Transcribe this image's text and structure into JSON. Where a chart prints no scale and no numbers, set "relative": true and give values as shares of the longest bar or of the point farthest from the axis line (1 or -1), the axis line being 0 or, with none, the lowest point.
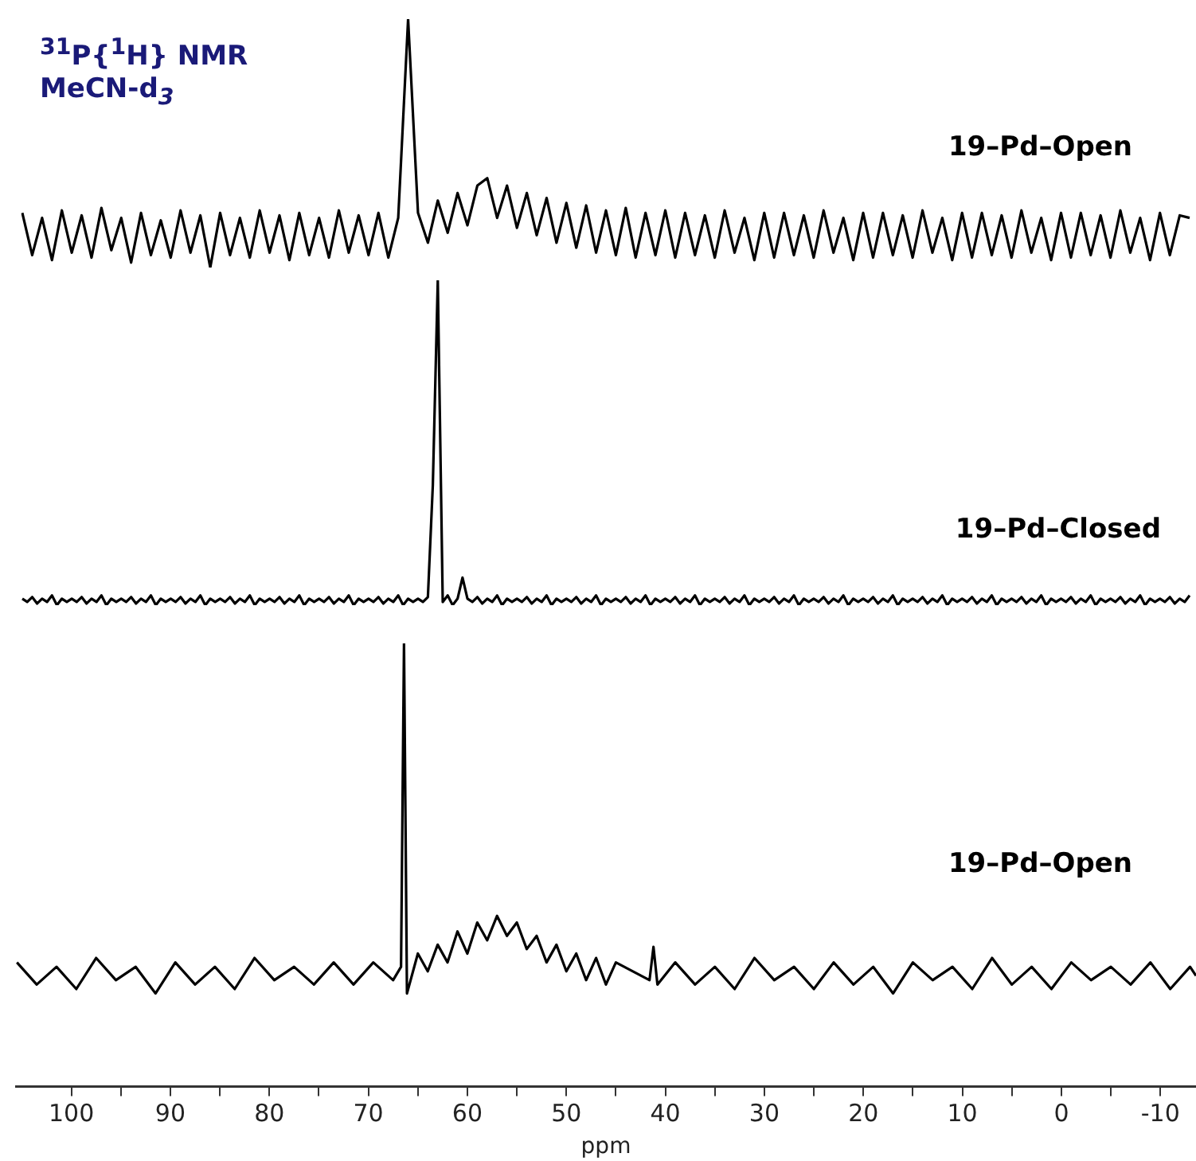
{
  "chart_data": [
    {
      "type": "line",
      "relative": true,
      "tick_labels": false,
      "marker": "none",
      "annotations": [
        "$^{31}$P{$^{1}$H} NMR",
        "MeCN-d$_{3}$"
      ],
      "categories": [
        null,
        null,
        null,
        null,
        null,
        null,
        null,
        null,
        null,
        null,
        null,
        null,
        null,
        null,
        null,
        null,
        null,
        null,
        null,
        null,
        null,
        null,
        null,
        null,
        null,
        null,
        null,
        null,
        null,
        null,
        null,
        null,
        null,
        null,
        null,
        null,
        null,
        null,
        null,
        null,
        null,
        null,
        null,
        null,
        null,
        null,
        null,
        null,
        null,
        null,
        null,
        null,
        null,
        null,
        null,
        null,
        null,
        null,
        null,
        null,
        null,
        null,
        null,
        null,
        null,
        null,
        null,
        null,
        null,
        null,
        null,
        null,
        null,
        null,
        null,
        null,
        null,
        null,
        null,
        null,
        null,
        null,
        null,
        null,
        null,
        null,
        null,
        null,
        null,
        null,
        null,
        null,
        null,
        null,
        null,
        null,
        null,
        null,
        null,
        null,
        null,
        null,
        null,
        null,
        null,
        null,
        null,
        null,
        null,
        null,
        null,
        null,
        null,
        null,
        null,
        null,
        null,
        null,
        null
      ],
      "series": [
        {
          "name": "19–Pd–Open",
          "color": "#000000",
          "values": [
            0.22,
            0.05,
            0.2,
            0.03,
            0.23,
            0.06,
            0.21,
            0.04,
            0.24,
            0.07,
            0.2,
            0.02,
            0.22,
            0.05,
            0.19,
            0.04,
            0.23,
            0.06,
            0.21,
            0,
            0.22,
            0.05,
            0.2,
            0.04,
            0.23,
            0.06,
            0.21,
            0.03,
            0.22,
            0.05,
            0.2,
            0.04,
            0.23,
            0.06,
            0.21,
            0.05,
            0.22,
            0.04,
            0.2,
            1,
            0.22,
            0.1,
            0.27,
            0.14,
            0.3,
            0.17,
            0.33,
            0.36,
            0.2,
            0.33,
            0.16,
            0.3,
            0.13,
            0.28,
            0.1,
            0.26,
            0.08,
            0.25,
            0.06,
            0.23,
            0.05,
            0.24,
            0.04,
            0.22,
            0.05,
            0.23,
            0.04,
            0.22,
            0.05,
            0.21,
            0.04,
            0.23,
            0.06,
            0.2,
            0.03,
            0.22,
            0.04,
            0.22,
            0.05,
            0.21,
            0.04,
            0.23,
            0.06,
            0.2,
            0.03,
            0.22,
            0.04,
            0.22,
            0.05,
            0.21,
            0.04,
            0.23,
            0.06,
            0.2,
            0.03,
            0.22,
            0.04,
            0.22,
            0.05,
            0.21,
            0.04,
            0.23,
            0.06,
            0.2,
            0.03,
            0.22,
            0.04,
            0.22,
            0.05,
            0.21,
            0.04,
            0.23,
            0.06,
            0.2,
            0.03,
            0.22,
            0.05,
            0.21,
            0.2
          ]
        }
      ]
    },
    {
      "type": "line",
      "relative": true,
      "tick_labels": false,
      "marker": "none",
      "categories": [
        null,
        null,
        null,
        null,
        null,
        null,
        null,
        null,
        null,
        null,
        null,
        null,
        null,
        null,
        null,
        null,
        null,
        null,
        null,
        null,
        null,
        null,
        null,
        null,
        null,
        null,
        null,
        null,
        null,
        null,
        null,
        null,
        null,
        null,
        null,
        null,
        null,
        null,
        null,
        null,
        null,
        null,
        null,
        null,
        null,
        null,
        null,
        null,
        null,
        null,
        null,
        null,
        null,
        null,
        null,
        null,
        null,
        null,
        null,
        null,
        null,
        null,
        null,
        null,
        null,
        null,
        null,
        null,
        null,
        null,
        null,
        null,
        null,
        null,
        null,
        null,
        null,
        null,
        null,
        null,
        null,
        null,
        null,
        null,
        null,
        null,
        null,
        null,
        null,
        null,
        null,
        null,
        null,
        null,
        null,
        null,
        null,
        null,
        null,
        null,
        null,
        null,
        null,
        null,
        null,
        null,
        null,
        null,
        null,
        null,
        null,
        null,
        null,
        null,
        null,
        null,
        null,
        null,
        null,
        null,
        null,
        null,
        null,
        null,
        null,
        null,
        null,
        null,
        null,
        null,
        null,
        null,
        null,
        null,
        null,
        null,
        null,
        null,
        null,
        null,
        null,
        null,
        null,
        null,
        null,
        null,
        null,
        null,
        null,
        null,
        null,
        null,
        null,
        null,
        null,
        null,
        null,
        null,
        null,
        null,
        null,
        null,
        null,
        null,
        null,
        null,
        null,
        null,
        null,
        null,
        null,
        null,
        null,
        null,
        null,
        null,
        null,
        null,
        null,
        null,
        null,
        null,
        null,
        null,
        null,
        null,
        null,
        null,
        null,
        null,
        null,
        null,
        null,
        null,
        null,
        null,
        null,
        null,
        null,
        null,
        null,
        null,
        null,
        null,
        null,
        null,
        null,
        null,
        null,
        null,
        null,
        null,
        null,
        null,
        null,
        null,
        null,
        null,
        null,
        null,
        null,
        null,
        null,
        null,
        null,
        null,
        null,
        null,
        null,
        null,
        null,
        null,
        null,
        null,
        null,
        null,
        null
      ],
      "series": [
        {
          "name": "19–Pd–Closed",
          "color": "#000000",
          "values": [
            0.02,
            0.01,
            0.025,
            0.005,
            0.02,
            0.01,
            0.03,
            0,
            0.02,
            0.01,
            0.02,
            0.01,
            0.025,
            0.005,
            0.02,
            0.01,
            0.03,
            0,
            0.02,
            0.01,
            0.02,
            0.01,
            0.025,
            0.005,
            0.02,
            0.01,
            0.03,
            0,
            0.02,
            0.01,
            0.02,
            0.01,
            0.025,
            0.005,
            0.02,
            0.01,
            0.03,
            0,
            0.02,
            0.01,
            0.02,
            0.01,
            0.025,
            0.005,
            0.02,
            0.01,
            0.03,
            0,
            0.02,
            0.01,
            0.02,
            0.01,
            0.025,
            0.005,
            0.02,
            0.01,
            0.03,
            0,
            0.02,
            0.01,
            0.02,
            0.01,
            0.025,
            0.005,
            0.02,
            0.01,
            0.03,
            0,
            0.02,
            0.01,
            0.02,
            0.01,
            0.025,
            0.005,
            0.02,
            0.01,
            0.03,
            0,
            0.02,
            0.01,
            0.02,
            0.01,
            0.025,
            0.37,
            1,
            0.01,
            0.03,
            0,
            0.02,
            0.085,
            0.02,
            0.01,
            0.025,
            0.005,
            0.02,
            0.01,
            0.03,
            0,
            0.02,
            0.01,
            0.02,
            0.01,
            0.025,
            0.005,
            0.02,
            0.01,
            0.03,
            0,
            0.02,
            0.01,
            0.02,
            0.01,
            0.025,
            0.005,
            0.02,
            0.01,
            0.03,
            0,
            0.02,
            0.01,
            0.02,
            0.01,
            0.025,
            0.005,
            0.02,
            0.01,
            0.03,
            0,
            0.02,
            0.01,
            0.02,
            0.01,
            0.025,
            0.005,
            0.02,
            0.01,
            0.03,
            0,
            0.02,
            0.01,
            0.02,
            0.01,
            0.025,
            0.005,
            0.02,
            0.01,
            0.03,
            0,
            0.02,
            0.01,
            0.02,
            0.01,
            0.025,
            0.005,
            0.02,
            0.01,
            0.03,
            0,
            0.02,
            0.01,
            0.02,
            0.01,
            0.025,
            0.005,
            0.02,
            0.01,
            0.03,
            0,
            0.02,
            0.01,
            0.02,
            0.01,
            0.025,
            0.005,
            0.02,
            0.01,
            0.03,
            0,
            0.02,
            0.01,
            0.02,
            0.01,
            0.025,
            0.005,
            0.02,
            0.01,
            0.03,
            0,
            0.02,
            0.01,
            0.02,
            0.01,
            0.025,
            0.005,
            0.02,
            0.01,
            0.03,
            0,
            0.02,
            0.01,
            0.02,
            0.01,
            0.025,
            0.005,
            0.02,
            0.01,
            0.03,
            0,
            0.02,
            0.01,
            0.02,
            0.01,
            0.025,
            0.005,
            0.02,
            0.01,
            0.03,
            0,
            0.02,
            0.01,
            0.02,
            0.01,
            0.025,
            0.005,
            0.02,
            0.01,
            0.03,
            0,
            0.02,
            0.01,
            0.02,
            0.01,
            0.025,
            0.005,
            0.02,
            0.01,
            0.03
          ]
        }
      ]
    },
    {
      "type": "line",
      "relative": true,
      "xlim": [
        105.6,
        -13.6
      ],
      "xlabel": "ppm",
      "tick_labels": "x",
      "marker": "none",
      "xticks": [
        100,
        {
          "value": 95,
          "label": null
        },
        90,
        {
          "value": 85,
          "label": null
        },
        80,
        {
          "value": 75,
          "label": null
        },
        70,
        {
          "value": 65,
          "label": null
        },
        60,
        {
          "value": 55,
          "label": null
        },
        50,
        {
          "value": 45,
          "label": null
        },
        40,
        {
          "value": 35,
          "label": null
        },
        30,
        {
          "value": 25,
          "label": null
        },
        20,
        {
          "value": 15,
          "label": null
        },
        10,
        {
          "value": 5,
          "label": null
        },
        0,
        {
          "value": -5,
          "label": null
        },
        -10
      ],
      "x": [
        105.5,
        103.5,
        101.5,
        99.5,
        97.5,
        95.5,
        93.5,
        91.5,
        89.5,
        87.5,
        85.5,
        83.5,
        81.5,
        79.5,
        77.5,
        75.5,
        73.5,
        71.5,
        69.5,
        67.5,
        66.7,
        66.4,
        66.1,
        65,
        64,
        63,
        62,
        61,
        60,
        59,
        58,
        57,
        56,
        55,
        54,
        53,
        52,
        51,
        50,
        49,
        48,
        47,
        46,
        45,
        41.6,
        41.2,
        40.8,
        39,
        37,
        35,
        33,
        31,
        29,
        27,
        25,
        23,
        21,
        19,
        17,
        15,
        13,
        11,
        9,
        7,
        5,
        3,
        1,
        -1,
        -3,
        -5,
        -7,
        -9,
        -11,
        -13,
        -13.6
      ],
      "series": [
        {
          "name": "19–Pd–Open",
          "color": "#000000",
          "values": [
            0.28,
            0.23,
            0.27,
            0.22,
            0.29,
            0.24,
            0.27,
            0.21,
            0.28,
            0.23,
            0.27,
            0.22,
            0.29,
            0.24,
            0.27,
            0.23,
            0.28,
            0.23,
            0.28,
            0.24,
            0.27,
            1,
            0.21,
            0.3,
            0.26,
            0.32,
            0.28,
            0.35,
            0.3,
            0.37,
            0.33,
            0.385,
            0.34,
            0.37,
            0.31,
            0.34,
            0.28,
            0.32,
            0.26,
            0.3,
            0.24,
            0.29,
            0.23,
            0.28,
            0.24,
            0.315,
            0.23,
            0.28,
            0.23,
            0.27,
            0.22,
            0.29,
            0.24,
            0.27,
            0.22,
            0.28,
            0.23,
            0.27,
            0.21,
            0.28,
            0.24,
            0.27,
            0.22,
            0.29,
            0.23,
            0.27,
            0.22,
            0.28,
            0.24,
            0.27,
            0.23,
            0.28,
            0.22,
            0.27,
            0.25
          ]
        }
      ]
    }
  ]
}
